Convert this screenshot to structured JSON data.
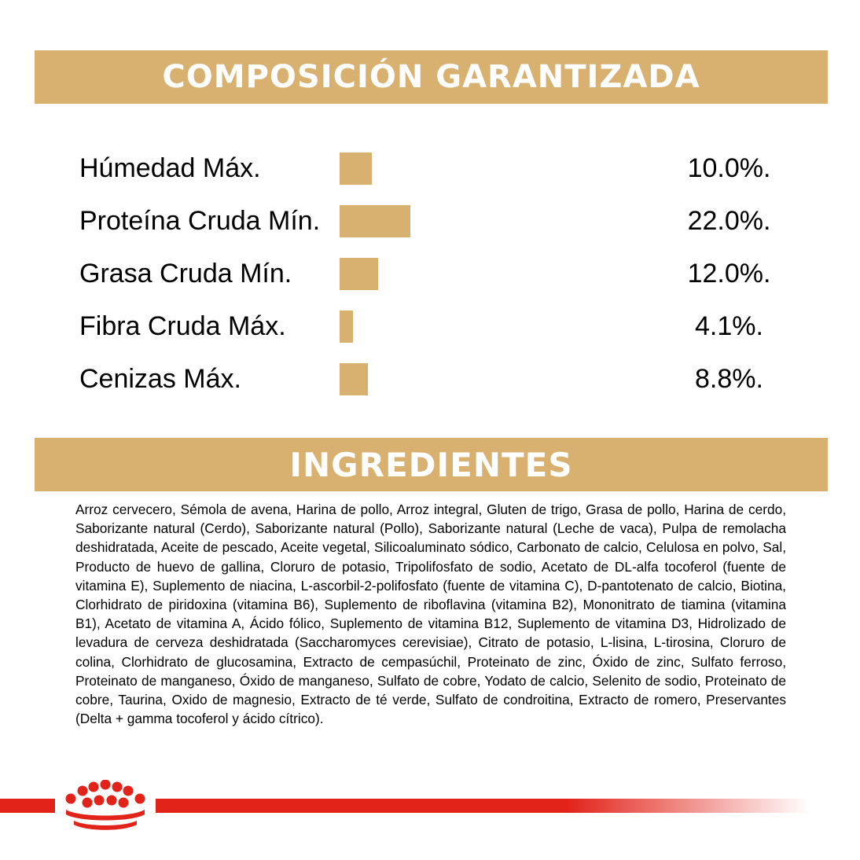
{
  "composition": {
    "title": "COMPOSICIÓN GARANTIZADA",
    "bar_color": "#d8b06f",
    "rows": [
      {
        "label": "Húmedad Máx.",
        "value": "10.0%.",
        "percent": 10.0
      },
      {
        "label": "Proteína Cruda Mín.",
        "value": "22.0%.",
        "percent": 22.0
      },
      {
        "label": "Grasa Cruda Mín.",
        "value": "12.0%.",
        "percent": 12.0
      },
      {
        "label": "Fibra Cruda Máx.",
        "value": "4.1%.",
        "percent": 4.1
      },
      {
        "label": "Cenizas Máx.",
        "value": "8.8%.",
        "percent": 8.8
      }
    ]
  },
  "ingredients": {
    "title": "INGREDIENTES",
    "text": "Arroz cervecero, Sémola de avena, Harina de pollo, Arroz integral, Gluten de trigo, Grasa de pollo, Harina de cerdo, Saborizante natural (Cerdo), Saborizante natural (Pollo), Saborizante natural (Leche de vaca), Pulpa de remolacha deshidratada, Aceite de pescado, Aceite vegetal, Silicoaluminato sódico, Carbonato de calcio, Celulosa en polvo, Sal, Producto de huevo de gallina, Cloruro de potasio, Tripolifosfato de sodio, Acetato de DL-alfa tocoferol (fuente de vitamina E), Suplemento de niacina, L-ascorbil-2-polifosfato (fuente de vitamina C), D-pantotenato de calcio, Biotina, Clorhidrato de piridoxina (vitamina B6), Suplemento de riboflavina (vitamina B2), Mononitrato de tiamina (vitamina B1), Acetato de vitamina A, Ácido fólico, Suplemento de vitamina B12, Suplemento de vitamina D3, Hidrolizado de levadura de cerveza deshidratada (Saccharomyces cerevisiae), Citrato de potasio, L-lisina, L-tirosina, Cloruro de colina, Clorhidrato de glucosamina, Extracto de cempasúchil, Proteinato de zinc, Óxido de zinc, Sulfato ferroso, Proteinato de manganeso, Óxido de manganeso, Sulfato de cobre, Yodato de calcio, Selenito de sodio, Proteinato de cobre, Taurina, Oxido de magnesio, Extracto de té verde, Sulfato de condroitina, Extracto de romero, Preservantes (Delta + gamma tocoferol y ácido cítrico)."
  },
  "footer": {
    "logo_icon": "crown-icon",
    "accent_color": "#e2231a"
  }
}
